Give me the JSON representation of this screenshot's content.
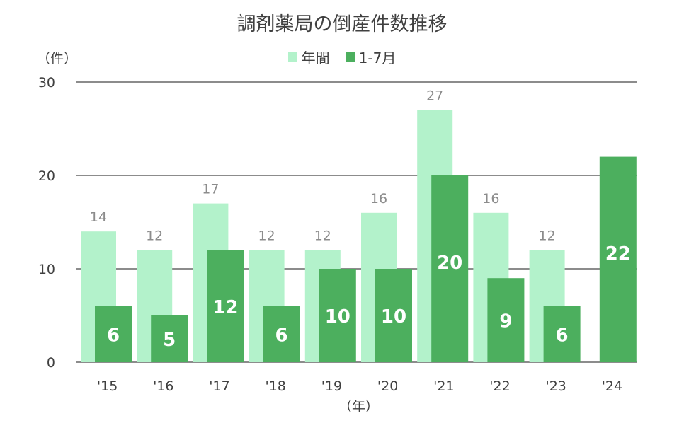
{
  "chart_data": {
    "type": "bar",
    "title": "調剤薬局の倒産件数推移",
    "ylabel": "（件）",
    "xlabel": "（年）",
    "ylim": [
      0,
      30
    ],
    "yticks": [
      0,
      10,
      20,
      30
    ],
    "grid": true,
    "legend_position": "top-center",
    "categories": [
      "'15",
      "'16",
      "'17",
      "'18",
      "'19",
      "'20",
      "'21",
      "'22",
      "'23",
      "'24"
    ],
    "series": [
      {
        "name": "年間",
        "color": "#b3f2cb",
        "values": [
          14,
          12,
          17,
          12,
          12,
          16,
          27,
          16,
          12,
          null
        ]
      },
      {
        "name": "1-7月",
        "color": "#4caf5e",
        "values": [
          6,
          5,
          12,
          6,
          10,
          10,
          20,
          9,
          6,
          22
        ]
      }
    ]
  }
}
